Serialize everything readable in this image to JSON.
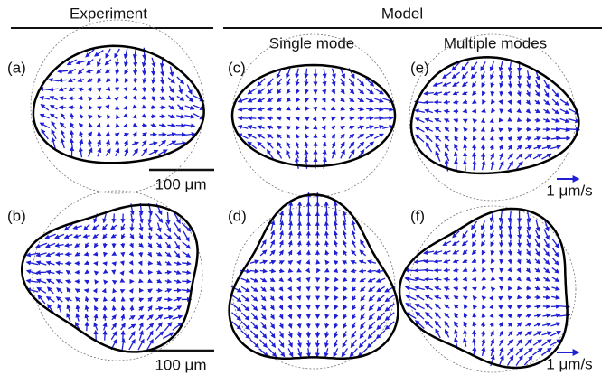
{
  "header": {
    "experiment": "Experiment",
    "model": "Model",
    "single_mode": "Single mode",
    "multiple_modes": "Multiple modes"
  },
  "panels": [
    {
      "label": "(a)"
    },
    {
      "label": "(b)"
    },
    {
      "label": "(c)"
    },
    {
      "label": "(d)"
    },
    {
      "label": "(e)"
    },
    {
      "label": "(f)"
    }
  ],
  "scale_bars": [
    {
      "length": "100 μm",
      "velocity": "1 μm/s"
    },
    {
      "length": "100 μm",
      "velocity": "1 μm/s"
    }
  ]
}
